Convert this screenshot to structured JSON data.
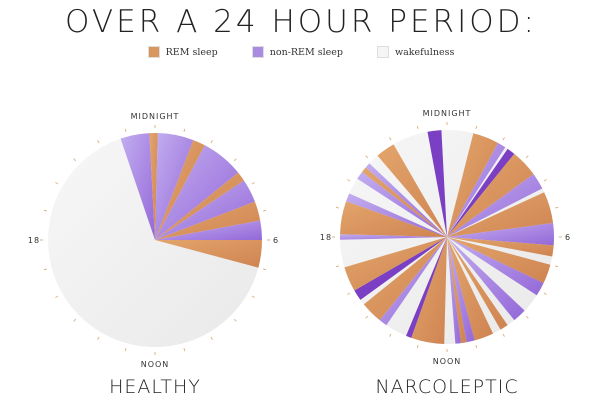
{
  "chart_data": [
    {
      "type": "pie",
      "subtype": "24-hour polar clock",
      "title": "HEALTHY",
      "clock_labels": {
        "top": "MIDNIGHT",
        "right": "6",
        "bottom": "NOON",
        "left": "18"
      },
      "background_state": "wakefulness",
      "segments": [
        {
          "start": 22.75,
          "end": 23.8,
          "state": "non-REM sleep"
        },
        {
          "start": 23.8,
          "end": 0.1,
          "state": "REM sleep"
        },
        {
          "start": 0.1,
          "end": 1.4,
          "state": "non-REM sleep"
        },
        {
          "start": 1.4,
          "end": 1.85,
          "state": "REM sleep"
        },
        {
          "start": 1.85,
          "end": 3.4,
          "state": "non-REM sleep"
        },
        {
          "start": 3.4,
          "end": 3.75,
          "state": "REM sleep"
        },
        {
          "start": 3.75,
          "end": 4.6,
          "state": "non-REM sleep"
        },
        {
          "start": 4.6,
          "end": 5.3,
          "state": "REM sleep"
        },
        {
          "start": 5.3,
          "end": 6.0,
          "state": "non-REM sleep"
        },
        {
          "start": 6.0,
          "end": 7.0,
          "state": "REM sleep"
        }
      ]
    },
    {
      "type": "pie",
      "subtype": "24-hour polar clock",
      "title": "NARCOLEPTIC",
      "clock_labels": {
        "top": "MIDNIGHT",
        "right": "6",
        "bottom": "NOON",
        "left": "18"
      },
      "background_state": "wakefulness",
      "segments": [
        {
          "start": 23.3,
          "end": 23.8,
          "state": "non-REM sleep"
        },
        {
          "start": 0.95,
          "end": 1.9,
          "state": "REM sleep"
        },
        {
          "start": 1.9,
          "end": 2.2,
          "state": "non-REM sleep"
        },
        {
          "start": 2.3,
          "end": 2.6,
          "state": "non-REM sleep"
        },
        {
          "start": 2.6,
          "end": 3.6,
          "state": "REM sleep"
        },
        {
          "start": 3.6,
          "end": 4.2,
          "state": "non-REM sleep"
        },
        {
          "start": 4.35,
          "end": 5.5,
          "state": "REM sleep"
        },
        {
          "start": 5.5,
          "end": 6.3,
          "state": "non-REM sleep"
        },
        {
          "start": 6.3,
          "end": 6.7,
          "state": "REM sleep"
        },
        {
          "start": 7.0,
          "end": 7.7,
          "state": "REM sleep"
        },
        {
          "start": 7.7,
          "end": 8.2,
          "state": "non-REM sleep"
        },
        {
          "start": 8.9,
          "end": 9.4,
          "state": "non-REM sleep"
        },
        {
          "start": 9.7,
          "end": 10.0,
          "state": "REM sleep"
        },
        {
          "start": 10.3,
          "end": 11.0,
          "state": "REM sleep"
        },
        {
          "start": 11.0,
          "end": 11.3,
          "state": "non-REM sleep"
        },
        {
          "start": 11.3,
          "end": 11.5,
          "state": "REM sleep"
        },
        {
          "start": 11.5,
          "end": 11.7,
          "state": "non-REM sleep"
        },
        {
          "start": 12.1,
          "end": 13.3,
          "state": "REM sleep"
        },
        {
          "start": 13.3,
          "end": 13.5,
          "state": "non-REM sleep"
        },
        {
          "start": 14.3,
          "end": 14.6,
          "state": "non-REM sleep"
        },
        {
          "start": 14.6,
          "end": 15.4,
          "state": "REM sleep"
        },
        {
          "start": 15.6,
          "end": 16.0,
          "state": "non-REM sleep"
        },
        {
          "start": 16.0,
          "end": 16.9,
          "state": "REM sleep"
        },
        {
          "start": 17.9,
          "end": 18.1,
          "state": "non-REM sleep"
        },
        {
          "start": 18.1,
          "end": 19.3,
          "state": "REM sleep"
        },
        {
          "start": 19.3,
          "end": 19.6,
          "state": "non-REM sleep"
        },
        {
          "start": 20.2,
          "end": 20.5,
          "state": "non-REM sleep"
        },
        {
          "start": 20.5,
          "end": 20.7,
          "state": "REM sleep"
        },
        {
          "start": 20.7,
          "end": 20.9,
          "state": "non-REM sleep"
        },
        {
          "start": 21.3,
          "end": 22.0,
          "state": "REM sleep"
        }
      ]
    }
  ],
  "header": {
    "title": "OVER A 24 HOUR PERIOD:"
  },
  "legend": [
    {
      "label": "REM sleep",
      "color": "#d9965f"
    },
    {
      "label": "non-REM sleep",
      "color": "#a98be2"
    },
    {
      "label": "wakefulness",
      "color": "#f5f5f5"
    }
  ],
  "colors": {
    "REM sleep": "#d9965f",
    "non-REM sleep": "#a98be2",
    "non-REM dark": "#7a3fc2",
    "wakefulness": "#f1f1f1",
    "tick": "#d9b48a"
  }
}
